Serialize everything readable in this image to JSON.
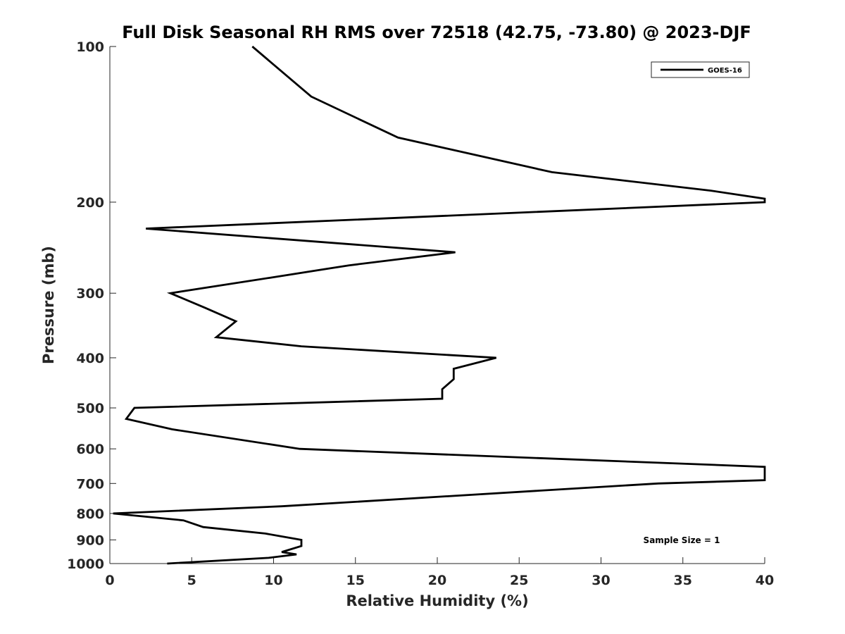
{
  "chart_data": {
    "type": "line",
    "title": "Full Disk Seasonal RH RMS over 72518 (42.75, -73.80) @ 2023-DJF",
    "xlabel": "Relative Humidity (%)",
    "ylabel": "Pressure (mb)",
    "xlim": [
      0,
      40
    ],
    "ylim": [
      1000,
      100
    ],
    "yscale": "log",
    "y_reversed": true,
    "x_ticks": [
      "0",
      "5",
      "10",
      "15",
      "20",
      "25",
      "30",
      "35",
      "40"
    ],
    "y_ticks": [
      "100",
      "200",
      "300",
      "400",
      "500",
      "600",
      "700",
      "800",
      "900",
      "1000"
    ],
    "grid": false,
    "legend_position": "top-right",
    "annotation": "Sample Size = 1",
    "line_color": "#000000",
    "series": [
      {
        "name": "GOES-16",
        "points": [
          {
            "rh": 8.7,
            "p": 100
          },
          {
            "rh": 12.3,
            "p": 125
          },
          {
            "rh": 17.6,
            "p": 150
          },
          {
            "rh": 27.0,
            "p": 175
          },
          {
            "rh": 36.7,
            "p": 190
          },
          {
            "rh": 40.0,
            "p": 197
          },
          {
            "rh": 40.0,
            "p": 200
          },
          {
            "rh": 2.2,
            "p": 225
          },
          {
            "rh": 21.1,
            "p": 250
          },
          {
            "rh": 14.6,
            "p": 265
          },
          {
            "rh": 9.8,
            "p": 280
          },
          {
            "rh": 3.7,
            "p": 300
          },
          {
            "rh": 5.8,
            "p": 320
          },
          {
            "rh": 7.7,
            "p": 340
          },
          {
            "rh": 6.5,
            "p": 365
          },
          {
            "rh": 11.7,
            "p": 380
          },
          {
            "rh": 23.6,
            "p": 400
          },
          {
            "rh": 21.0,
            "p": 420
          },
          {
            "rh": 21.0,
            "p": 440
          },
          {
            "rh": 20.3,
            "p": 460
          },
          {
            "rh": 20.3,
            "p": 480
          },
          {
            "rh": 1.5,
            "p": 500
          },
          {
            "rh": 1.0,
            "p": 525
          },
          {
            "rh": 3.8,
            "p": 550
          },
          {
            "rh": 11.6,
            "p": 600
          },
          {
            "rh": 40.0,
            "p": 650
          },
          {
            "rh": 40.0,
            "p": 690
          },
          {
            "rh": 33.5,
            "p": 700
          },
          {
            "rh": 10.5,
            "p": 775
          },
          {
            "rh": 0.2,
            "p": 800
          },
          {
            "rh": 4.5,
            "p": 825
          },
          {
            "rh": 5.7,
            "p": 850
          },
          {
            "rh": 9.5,
            "p": 875
          },
          {
            "rh": 11.7,
            "p": 900
          },
          {
            "rh": 11.7,
            "p": 925
          },
          {
            "rh": 10.5,
            "p": 950
          },
          {
            "rh": 11.4,
            "p": 960
          },
          {
            "rh": 9.7,
            "p": 975
          },
          {
            "rh": 3.5,
            "p": 1000
          }
        ]
      }
    ]
  }
}
